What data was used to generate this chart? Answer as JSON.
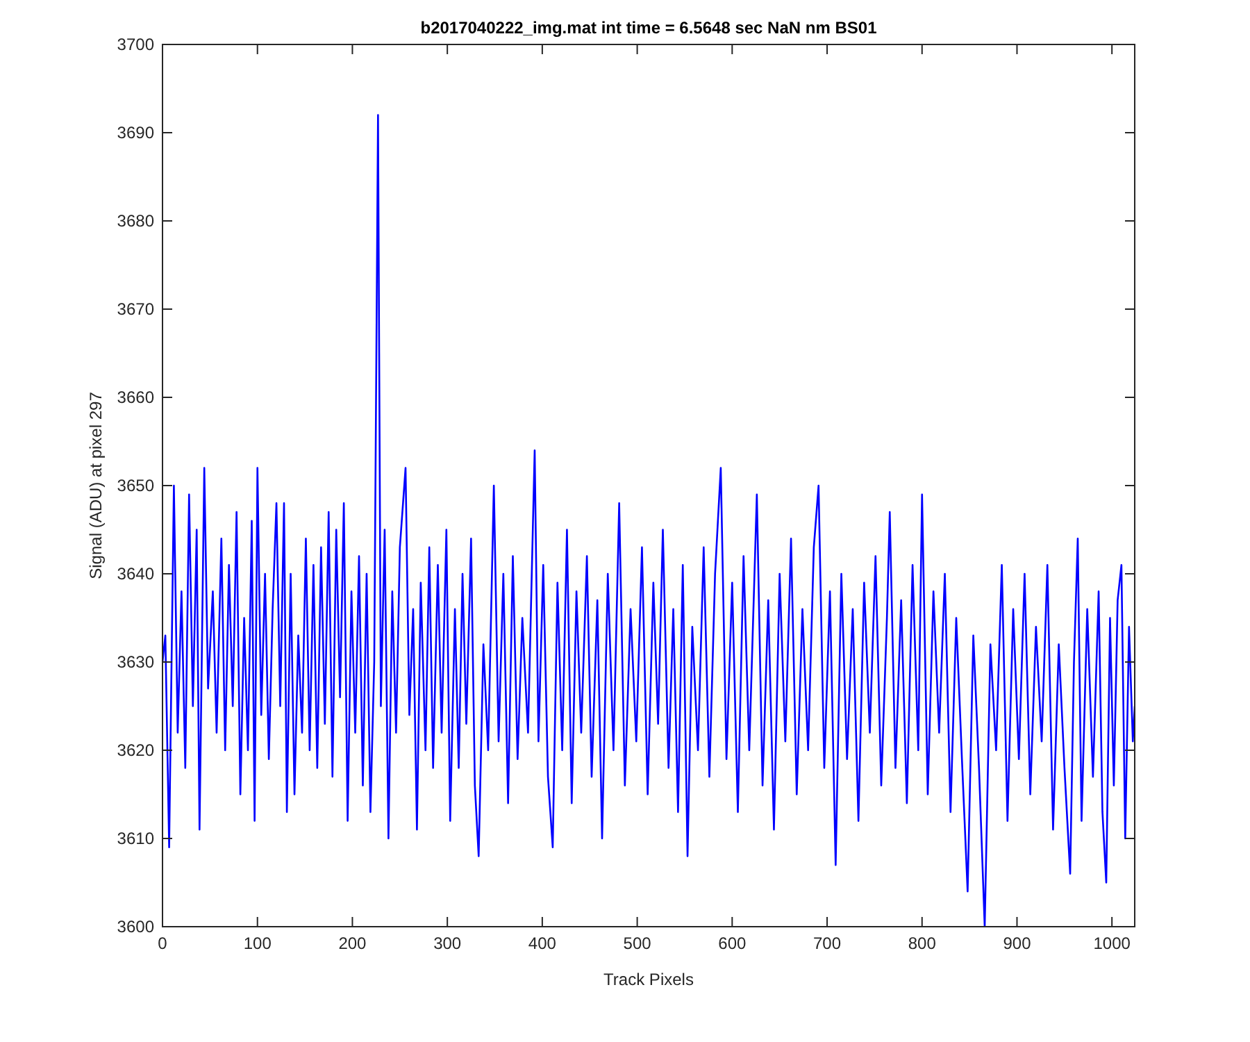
{
  "chart_data": {
    "type": "line",
    "title": "b2017040222_img.mat int time = 6.5648 sec  NaN nm BS01",
    "xlabel": "Track Pixels",
    "ylabel": "Signal (ADU) at pixel 297",
    "xlim": [
      0,
      1024
    ],
    "xticks": [
      0,
      100,
      200,
      300,
      400,
      500,
      600,
      700,
      800,
      900,
      1000
    ],
    "ylim": [
      3600,
      3700
    ],
    "yticks": [
      3600,
      3610,
      3620,
      3630,
      3640,
      3650,
      3660,
      3670,
      3680,
      3690,
      3700
    ],
    "grid": false,
    "marker": "none",
    "line_style": "solid",
    "x": [
      0,
      3,
      7,
      12,
      16,
      20,
      24,
      28,
      32,
      36,
      39,
      44,
      48,
      53,
      57,
      62,
      66,
      70,
      74,
      78,
      82,
      86,
      90,
      94,
      97,
      100,
      104,
      108,
      112,
      116,
      120,
      124,
      128,
      131,
      135,
      139,
      143,
      147,
      151,
      155,
      159,
      163,
      167,
      171,
      175,
      179,
      183,
      187,
      191,
      195,
      199,
      203,
      207,
      211,
      215,
      219,
      223,
      227,
      230,
      234,
      238,
      242,
      246,
      250,
      256,
      260,
      264,
      268,
      272,
      277,
      281,
      285,
      290,
      294,
      299,
      303,
      308,
      312,
      316,
      320,
      325,
      329,
      333,
      338,
      343,
      349,
      354,
      359,
      364,
      369,
      374,
      379,
      385,
      392,
      396,
      401,
      406,
      411,
      416,
      421,
      426,
      431,
      436,
      441,
      447,
      452,
      458,
      463,
      469,
      475,
      481,
      487,
      493,
      499,
      505,
      511,
      517,
      522,
      527,
      533,
      538,
      543,
      548,
      553,
      558,
      564,
      570,
      576,
      582,
      588,
      594,
      600,
      606,
      612,
      618,
      626,
      632,
      638,
      644,
      650,
      656,
      662,
      668,
      674,
      680,
      686,
      691,
      697,
      703,
      709,
      715,
      721,
      727,
      733,
      739,
      745,
      751,
      757,
      763,
      766,
      772,
      778,
      784,
      790,
      796,
      800,
      806,
      812,
      818,
      824,
      830,
      836,
      842,
      848,
      854,
      860,
      866,
      872,
      878,
      884,
      890,
      896,
      902,
      908,
      914,
      920,
      926,
      932,
      938,
      944,
      950,
      956,
      960,
      964,
      968,
      974,
      980,
      986,
      990,
      994,
      998,
      1002,
      1006,
      1010,
      1014,
      1018,
      1022,
      1024
    ],
    "series": [
      {
        "color": "#0000ff",
        "values": [
          3630,
          3633,
          3609,
          3650,
          3622,
          3638,
          3618,
          3649,
          3625,
          3645,
          3611,
          3652,
          3627,
          3638,
          3622,
          3644,
          3620,
          3641,
          3625,
          3647,
          3615,
          3635,
          3620,
          3646,
          3612,
          3652,
          3624,
          3640,
          3619,
          3636,
          3648,
          3625,
          3648,
          3613,
          3640,
          3615,
          3633,
          3622,
          3644,
          3620,
          3641,
          3618,
          3643,
          3623,
          3647,
          3617,
          3645,
          3626,
          3648,
          3612,
          3638,
          3622,
          3642,
          3616,
          3640,
          3613,
          3630,
          3692,
          3625,
          3645,
          3610,
          3638,
          3622,
          3643,
          3652,
          3624,
          3636,
          3611,
          3639,
          3620,
          3643,
          3618,
          3641,
          3622,
          3645,
          3612,
          3636,
          3618,
          3640,
          3623,
          3644,
          3616,
          3608,
          3632,
          3620,
          3650,
          3621,
          3640,
          3614,
          3642,
          3619,
          3635,
          3622,
          3654,
          3621,
          3641,
          3617,
          3609,
          3639,
          3620,
          3645,
          3614,
          3638,
          3622,
          3642,
          3617,
          3637,
          3610,
          3640,
          3620,
          3648,
          3616,
          3636,
          3621,
          3643,
          3615,
          3639,
          3623,
          3645,
          3618,
          3636,
          3613,
          3641,
          3608,
          3634,
          3620,
          3643,
          3617,
          3640,
          3652,
          3619,
          3639,
          3613,
          3642,
          3620,
          3649,
          3616,
          3637,
          3611,
          3640,
          3621,
          3644,
          3615,
          3636,
          3620,
          3643,
          3650,
          3618,
          3638,
          3607,
          3640,
          3619,
          3636,
          3612,
          3639,
          3622,
          3642,
          3616,
          3635,
          3647,
          3618,
          3637,
          3614,
          3641,
          3620,
          3649,
          3615,
          3638,
          3622,
          3640,
          3613,
          3635,
          3619,
          3604,
          3633,
          3618,
          3600,
          3632,
          3620,
          3641,
          3612,
          3636,
          3619,
          3640,
          3615,
          3634,
          3621,
          3641,
          3611,
          3632,
          3618,
          3606,
          3630,
          3644,
          3612,
          3636,
          3617,
          3638,
          3613,
          3605,
          3635,
          3616,
          3637,
          3641,
          3610,
          3634,
          3621,
          3625
        ]
      }
    ]
  }
}
